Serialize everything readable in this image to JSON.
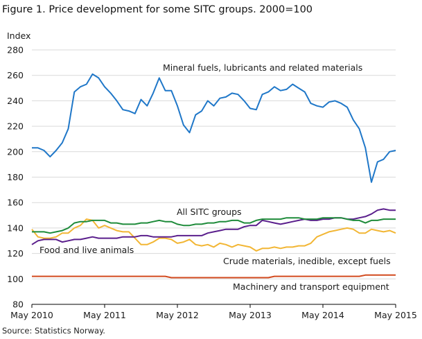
{
  "title": "Figure 1. Price development for some SITC groups. 2000=100",
  "source": "Source: Statistics Norway.",
  "chart_data": {
    "type": "line",
    "ylabel": "Index",
    "ylim": [
      80,
      280
    ],
    "yticks": [
      "80",
      "100",
      "120",
      "140",
      "160",
      "180",
      "200",
      "220",
      "240",
      "260",
      "280"
    ],
    "xticks": [
      "May 2010",
      "May 2011",
      "May 2012",
      "May 2013",
      "May 2014",
      "May 2015"
    ],
    "grid": "horizontal",
    "x_start": "May 2010",
    "x_end": "May 2015",
    "series": [
      {
        "name": "Mineral fuels, lubricants and related materials",
        "color": "#1f77c8",
        "values": [
          203,
          203,
          201,
          196,
          201,
          207,
          218,
          247,
          251,
          253,
          261,
          258,
          251,
          246,
          240,
          233,
          232,
          230,
          241,
          236,
          246,
          258,
          248,
          248,
          236,
          221,
          215,
          229,
          232,
          240,
          236,
          242,
          243,
          246,
          245,
          240,
          234,
          233,
          245,
          247,
          251,
          248,
          249,
          253,
          250,
          247,
          238,
          236,
          235,
          239,
          240,
          238,
          235,
          225,
          218,
          203,
          176,
          192,
          194,
          200,
          201
        ]
      },
      {
        "name": "All SITC groups",
        "color": "#1e8b3a",
        "values": [
          137,
          137,
          137,
          136,
          137,
          138,
          140,
          144,
          145,
          145,
          146,
          146,
          146,
          144,
          144,
          143,
          143,
          143,
          144,
          144,
          145,
          146,
          145,
          145,
          143,
          142,
          142,
          143,
          143,
          144,
          144,
          145,
          145,
          146,
          146,
          144,
          144,
          146,
          147,
          147,
          147,
          147,
          148,
          148,
          148,
          147,
          147,
          147,
          148,
          148,
          148,
          148,
          147,
          146,
          146,
          144,
          146,
          146,
          147,
          147,
          147
        ]
      },
      {
        "name": "Food and live animals",
        "color": "#5a1e8c",
        "values": [
          127,
          130,
          131,
          131,
          131,
          129,
          130,
          131,
          131,
          132,
          133,
          132,
          132,
          132,
          132,
          133,
          133,
          133,
          134,
          134,
          133,
          133,
          133,
          133,
          134,
          134,
          134,
          134,
          134,
          136,
          137,
          138,
          139,
          139,
          139,
          141,
          142,
          142,
          146,
          145,
          144,
          143,
          144,
          145,
          146,
          147,
          146,
          146,
          147,
          147,
          148,
          148,
          147,
          147,
          148,
          149,
          151,
          154,
          155,
          154,
          154
        ]
      },
      {
        "name": "Crude materials, inedible, except fuels",
        "color": "#f2b634",
        "values": [
          139,
          133,
          132,
          132,
          133,
          136,
          136,
          140,
          142,
          147,
          146,
          140,
          142,
          140,
          138,
          137,
          137,
          132,
          127,
          127,
          129,
          132,
          132,
          131,
          128,
          129,
          131,
          127,
          126,
          127,
          125,
          128,
          127,
          125,
          127,
          126,
          125,
          122,
          124,
          124,
          125,
          124,
          125,
          125,
          126,
          126,
          128,
          133,
          135,
          137,
          138,
          139,
          140,
          139,
          136,
          136,
          139,
          138,
          137,
          138,
          136
        ]
      },
      {
        "name": "Machinery and transport equipment",
        "color": "#d24a1e",
        "values": [
          102,
          102,
          102,
          102,
          102,
          102,
          102,
          102,
          102,
          102,
          102,
          102,
          102,
          102,
          102,
          102,
          102,
          102,
          102,
          102,
          102,
          102,
          102,
          101,
          101,
          101,
          101,
          101,
          101,
          101,
          101,
          101,
          101,
          101,
          101,
          101,
          101,
          101,
          101,
          101,
          102,
          102,
          102,
          102,
          102,
          102,
          102,
          102,
          102,
          102,
          102,
          102,
          102,
          102,
          102,
          103,
          103,
          103,
          103,
          103,
          103
        ]
      }
    ],
    "annotations": [
      {
        "text": "Mineral fuels, lubricants and related materials",
        "series": 0
      },
      {
        "text": "All SITC groups",
        "series": 1
      },
      {
        "text": "Food and live animals",
        "series": 2
      },
      {
        "text": "Crude materials, inedible, except fuels",
        "series": 3
      },
      {
        "text": "Machinery and transport equipment",
        "series": 4
      }
    ]
  }
}
